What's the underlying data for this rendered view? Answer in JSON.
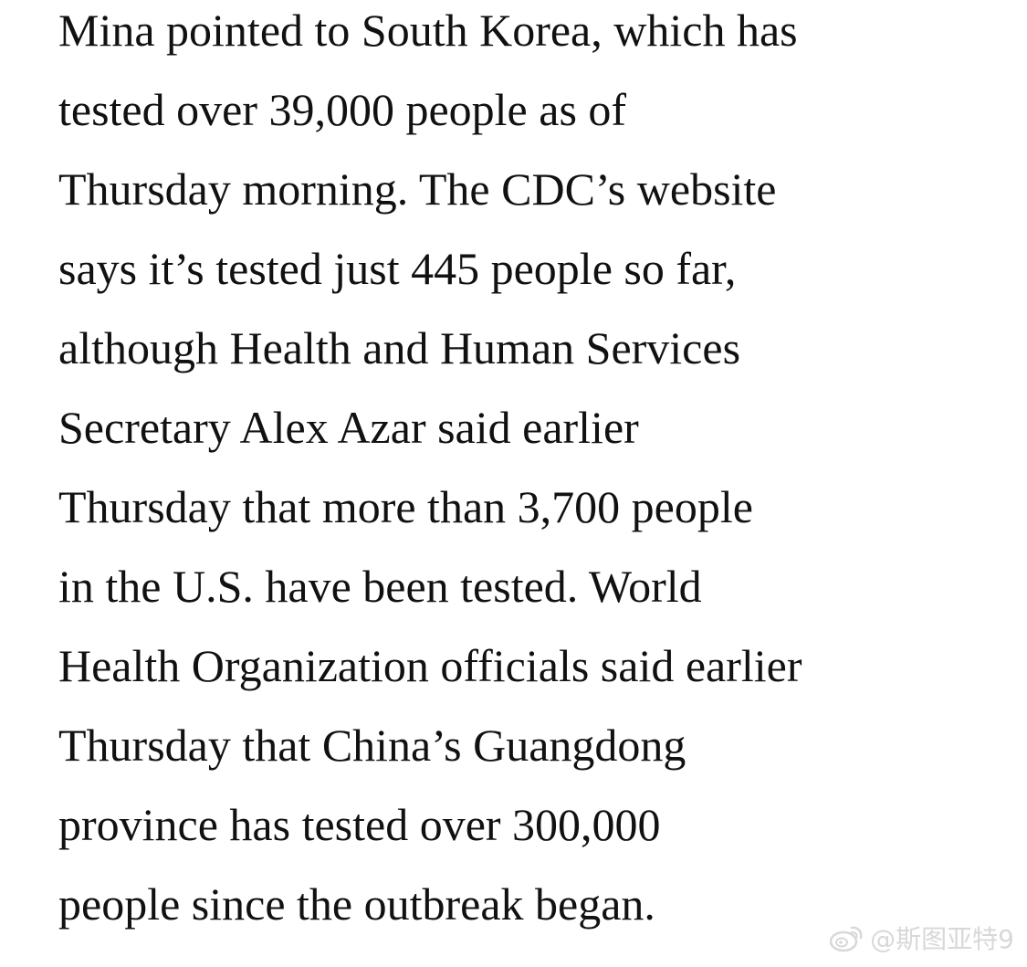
{
  "article": {
    "lines": [
      "Mina pointed to South Korea, which has",
      "tested over 39,000 people as of",
      "Thursday morning. The CDC’s website",
      "says it’s tested just 445 people so far,",
      "although Health and Human Services",
      "Secretary Alex Azar said earlier",
      "Thursday that more than 3,700 people",
      "in the U.S. have been tested. World",
      "Health Organization officials said earlier",
      "Thursday that China’s Guangdong",
      "province has tested over 300,000",
      "people since the outbreak began."
    ]
  },
  "watermark": {
    "icon": "weibo-icon",
    "text": "@斯图亚特9"
  }
}
